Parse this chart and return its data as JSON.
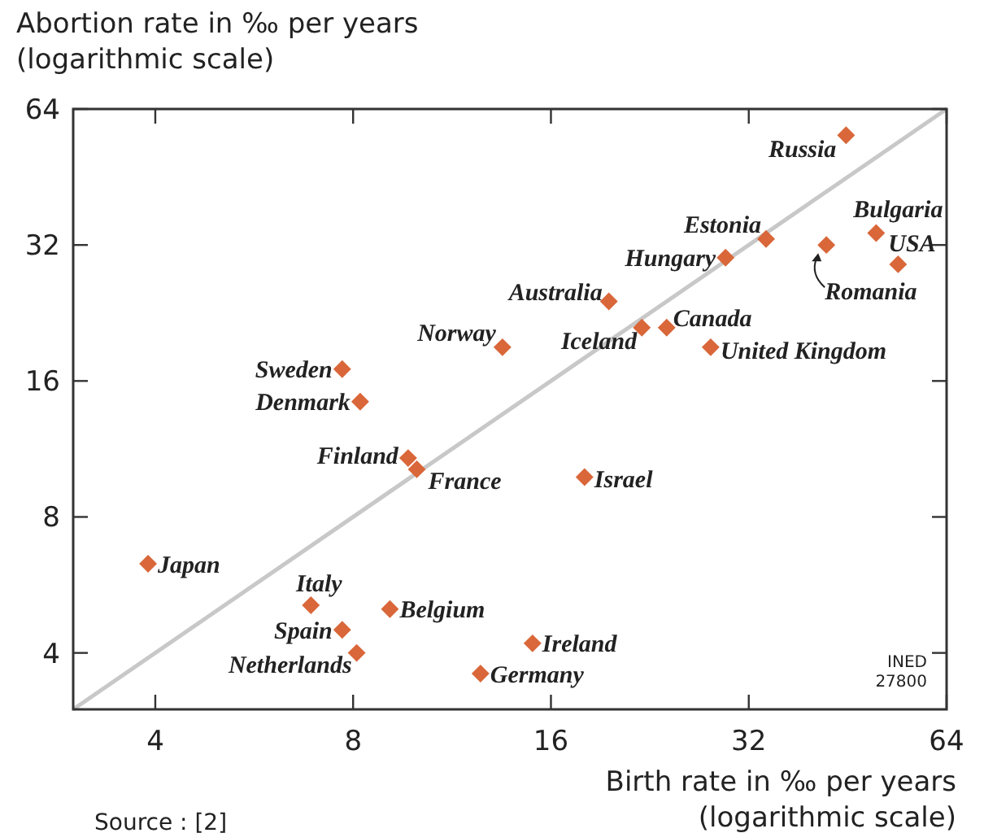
{
  "chart_data": {
    "type": "scatter",
    "xlabel": "Birth rate in ‰ per years\n(logarithmic scale)",
    "ylabel": "Abortion rate in ‰ per years\n(logarithmic scale)",
    "log": "xy",
    "xlim": [
      3,
      64
    ],
    "ylim": [
      3,
      64
    ],
    "xticks": [
      4,
      8,
      16,
      32,
      64
    ],
    "yticks": [
      4,
      8,
      16,
      32,
      64
    ],
    "grid": false,
    "series": [
      {
        "type": "line",
        "color": "#c8c8c8",
        "x": [
          3,
          64
        ],
        "values": [
          3,
          64
        ]
      },
      {
        "marker": "diamond",
        "color": "#d9673a",
        "x": [
          45,
          50,
          54,
          42,
          34,
          29.5,
          19.6,
          22,
          24,
          28,
          13.5,
          7.7,
          8.2,
          9.7,
          10,
          18,
          3.9,
          6.9,
          9.1,
          7.7,
          8.1,
          15,
          12.5
        ],
        "values": [
          56,
          34,
          29,
          32,
          33,
          30,
          24,
          21,
          21,
          19,
          19,
          17,
          14.4,
          10.8,
          10.2,
          9.8,
          6.3,
          5.1,
          5.0,
          4.5,
          4.0,
          4.2,
          3.6
        ]
      }
    ],
    "annotations": [
      {
        "text": "Russia",
        "x": 45,
        "y": 56
      },
      {
        "text": "Bulgaria",
        "x": 50,
        "y": 34
      },
      {
        "text": "USA",
        "x": 54,
        "y": 29
      },
      {
        "text": "Romania",
        "x": 42,
        "y": 32
      },
      {
        "text": "Estonia",
        "x": 34,
        "y": 33
      },
      {
        "text": "Hungary",
        "x": 29.5,
        "y": 30
      },
      {
        "text": "Australia",
        "x": 19.6,
        "y": 24
      },
      {
        "text": "Iceland",
        "x": 22,
        "y": 21
      },
      {
        "text": "Canada",
        "x": 24,
        "y": 21
      },
      {
        "text": "United Kingdom",
        "x": 28,
        "y": 19
      },
      {
        "text": "Norway",
        "x": 13.5,
        "y": 19
      },
      {
        "text": "Sweden",
        "x": 7.7,
        "y": 17
      },
      {
        "text": "Denmark",
        "x": 8.2,
        "y": 14.4
      },
      {
        "text": "Finland",
        "x": 9.7,
        "y": 10.8
      },
      {
        "text": "France",
        "x": 10,
        "y": 10.2
      },
      {
        "text": "Israel",
        "x": 18,
        "y": 9.8
      },
      {
        "text": "Japan",
        "x": 3.9,
        "y": 6.3
      },
      {
        "text": "Italy",
        "x": 6.9,
        "y": 5.1
      },
      {
        "text": "Belgium",
        "x": 9.1,
        "y": 5.0
      },
      {
        "text": "Spain",
        "x": 7.7,
        "y": 4.5
      },
      {
        "text": "Netherlands",
        "x": 8.1,
        "y": 4.0
      },
      {
        "text": "Ireland",
        "x": 15,
        "y": 4.2
      },
      {
        "text": "Germany",
        "x": 12.5,
        "y": 3.6
      },
      "INED\n27800",
      "Source : [2]"
    ]
  }
}
